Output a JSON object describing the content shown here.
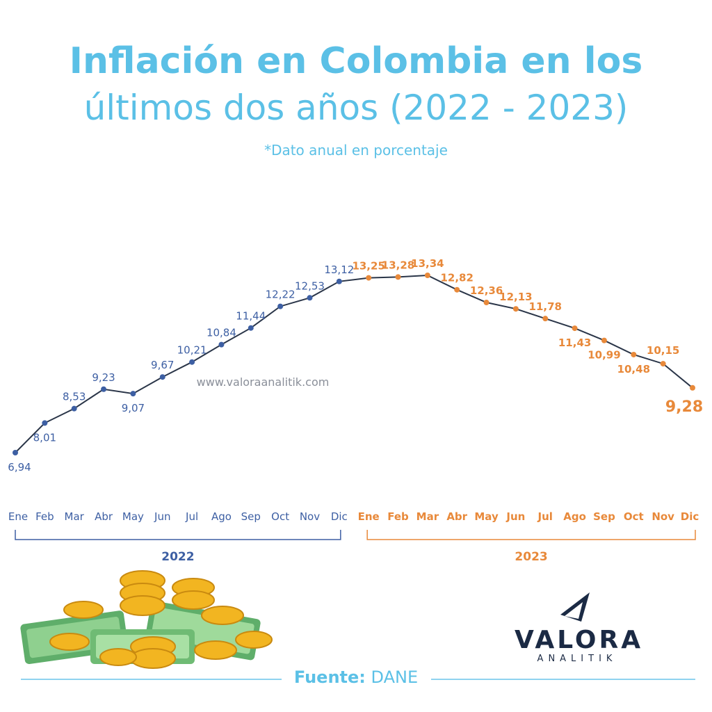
{
  "title_line1": "Inflación en Colombia en los",
  "title_line2": "últimos dos años (2022 - 2023)",
  "subtitle": "*Dato anual en porcentaje",
  "watermark": "www.valoraanalitik.com",
  "source_label": "Fuente:",
  "source_value": "DANE",
  "logo": {
    "word": "VALORA",
    "sub": "ANALITIK",
    "icon": "valora-logo-icon"
  },
  "illustration": "money-stack-icon",
  "colors": {
    "title": "#5bc0e6",
    "y2022": "#3d5fa3",
    "y2023": "#e8893a",
    "line": "#2a3548"
  },
  "chart_data": {
    "type": "line",
    "categories": [
      "Ene",
      "Feb",
      "Mar",
      "Abr",
      "May",
      "Jun",
      "Jul",
      "Ago",
      "Sep",
      "Oct",
      "Nov",
      "Dic",
      "Ene",
      "Feb",
      "Mar",
      "Abr",
      "May",
      "Jun",
      "Jul",
      "Ago",
      "Sep",
      "Oct",
      "Nov",
      "Dic"
    ],
    "values": [
      6.94,
      8.01,
      8.53,
      9.23,
      9.07,
      9.67,
      10.21,
      10.84,
      11.44,
      12.22,
      12.53,
      13.12,
      13.25,
      13.28,
      13.34,
      12.82,
      12.36,
      12.13,
      11.78,
      11.43,
      10.99,
      10.48,
      10.15,
      9.28
    ],
    "labels": [
      "6,94",
      "8,01",
      "8,53",
      "9,23",
      "9,07",
      "9,67",
      "10,21",
      "10,84",
      "11,44",
      "12,22",
      "12,53",
      "13,12",
      "13,25",
      "13,28",
      "13,34",
      "12,82",
      "12,36",
      "12,13",
      "11,78",
      "11,43",
      "10,99",
      "10,48",
      "10,15",
      "9,28"
    ],
    "groups": [
      {
        "name": "2022",
        "start": 0,
        "end": 11
      },
      {
        "name": "2023",
        "start": 12,
        "end": 23
      }
    ],
    "ylim": [
      6.94,
      13.34
    ],
    "grid": false
  }
}
